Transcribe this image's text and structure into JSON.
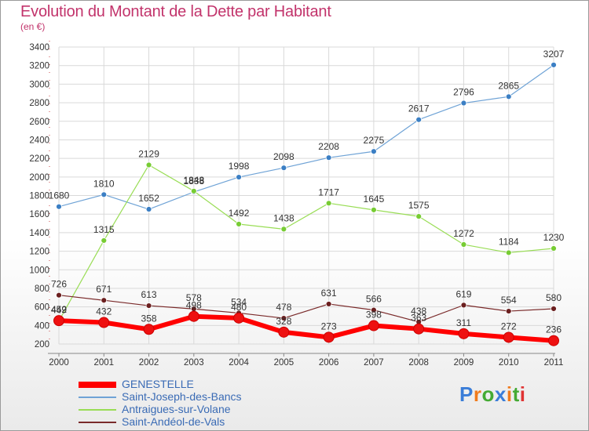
{
  "header": {
    "title": "Evolution du Montant de la Dette par Habitant",
    "subtitle": "(en €)"
  },
  "colors": {
    "title": "#c2336b",
    "axis_text": "#333333",
    "grid": "#d9d9d9",
    "legend_text": "#3a6bb5"
  },
  "chart_data": {
    "type": "line",
    "title": "Evolution du Montant de la Dette par Habitant",
    "subtitle": "(en €)",
    "xlabel": "",
    "ylabel": "",
    "x": [
      "2000",
      "2001",
      "2002",
      "2003",
      "2004",
      "2005",
      "2006",
      "2007",
      "2008",
      "2009",
      "2010",
      "2011"
    ],
    "ylim": [
      200,
      3400
    ],
    "yticks": [
      "200",
      "400",
      "600",
      "800",
      "1000",
      "1200",
      "1400",
      "1600",
      "1800",
      "2000",
      "2200",
      "2400",
      "2600",
      "2800",
      "3000",
      "3200",
      "3400"
    ],
    "grid": true,
    "legend": "bottom-left",
    "series": [
      {
        "name": "GENESTELLE",
        "color": "#ff0000",
        "point_color": "#ee1111",
        "width": 6,
        "values": [
          452,
          432,
          358,
          498,
          480,
          328,
          273,
          398,
          363,
          311,
          272,
          236
        ],
        "labels": [
          "452",
          "432",
          "358",
          "498",
          "480",
          "328",
          "273",
          "398",
          "363",
          "311",
          "272",
          "236"
        ]
      },
      {
        "name": "Saint-Joseph-des-Bancs",
        "color": "#6fa3d6",
        "point_color": "#3b7fc4",
        "width": 1.2,
        "values": [
          1680,
          1810,
          1652,
          1838,
          1998,
          2098,
          2208,
          2275,
          2617,
          2796,
          2865,
          3207
        ],
        "labels": [
          "1680",
          "1810",
          "1652",
          "1838",
          "1998",
          "2098",
          "2208",
          "2275",
          "2617",
          "2796",
          "2865",
          "3207"
        ]
      },
      {
        "name": "Antraigues-sur-Volane",
        "color": "#99dd55",
        "point_color": "#77cc33",
        "width": 1.2,
        "values": [
          449,
          1315,
          2129,
          1848,
          1492,
          1438,
          1717,
          1645,
          1575,
          1272,
          1184,
          1230
        ],
        "labels": [
          "449",
          "1315",
          "2129",
          "1848",
          "1492",
          "1438",
          "1717",
          "1645",
          "1575",
          "1272",
          "1184",
          "1230"
        ]
      },
      {
        "name": "Saint-Andéol-de-Vals",
        "color": "#7a2a2a",
        "point_color": "#6b1f1f",
        "width": 1.2,
        "values": [
          726,
          671,
          613,
          578,
          534,
          478,
          631,
          566,
          438,
          619,
          554,
          580
        ],
        "labels": [
          "726",
          "671",
          "613",
          "578",
          "534",
          "478",
          "631",
          "566",
          "438",
          "619",
          "554",
          "580"
        ]
      }
    ]
  },
  "legend": {
    "items": [
      {
        "label": "GENESTELLE"
      },
      {
        "label": "Saint-Joseph-des-Bancs"
      },
      {
        "label": "Antraigues-sur-Volane"
      },
      {
        "label": "Saint-Andéol-de-Vals"
      }
    ]
  },
  "logo": {
    "text": "Proxiti",
    "letters": [
      "P",
      "r",
      "o",
      "x",
      "i",
      "t",
      "i"
    ],
    "letter_colors": [
      "#3a7dd8",
      "#f07b1d",
      "#44aa33",
      "#3a7dd8",
      "#f07b1d",
      "#44aa33",
      "#e03333"
    ]
  }
}
